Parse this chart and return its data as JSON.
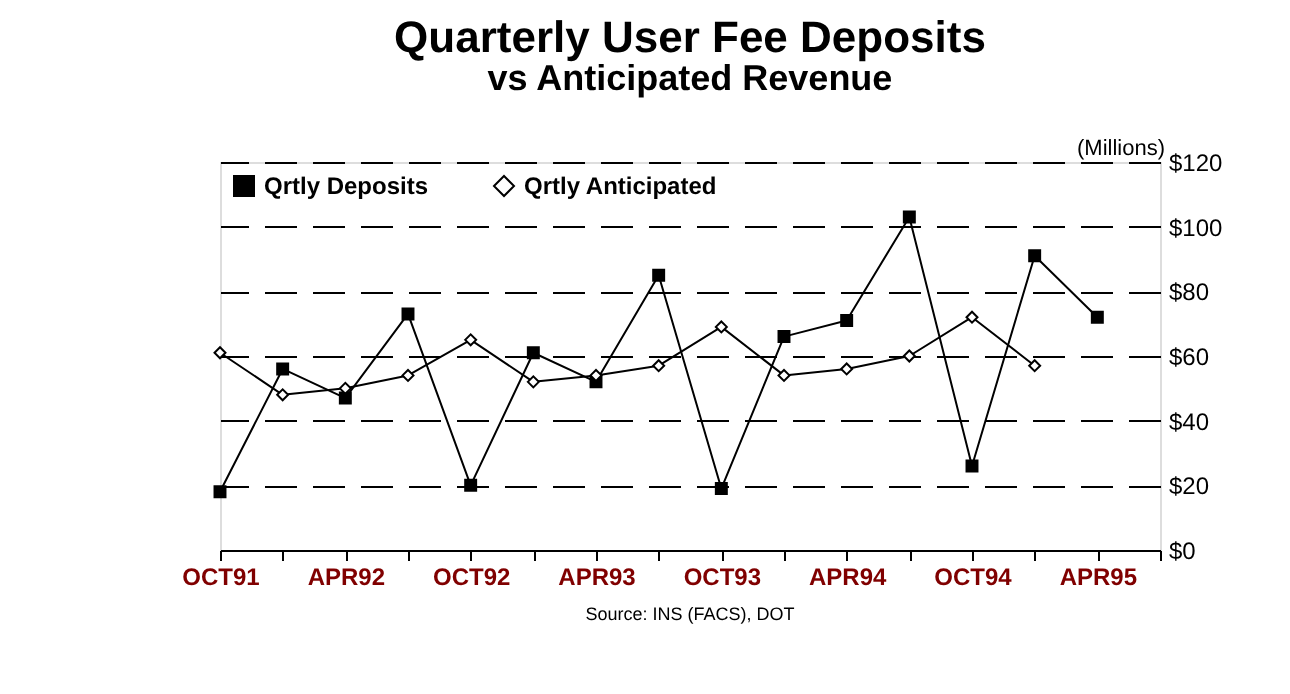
{
  "chart_data": {
    "type": "line",
    "title": "Quarterly User Fee Deposits",
    "subtitle": "vs Anticipated Revenue",
    "ylabel": "(Millions)",
    "categories": [
      "OCT91",
      null,
      "APR92",
      null,
      "OCT92",
      null,
      "APR93",
      null,
      "OCT93",
      null,
      "APR94",
      null,
      "OCT94",
      null,
      "APR95",
      null
    ],
    "series": [
      {
        "name": "Qrtly Deposits",
        "color": "#000000",
        "marker": "square",
        "values": [
          18,
          56,
          47,
          73,
          20,
          61,
          52,
          85,
          19,
          66,
          71,
          103,
          26,
          91,
          72,
          null
        ]
      },
      {
        "name": "Qrtly Anticipated",
        "color": "#000000",
        "marker": "diamond",
        "values": [
          61,
          48,
          50,
          54,
          65,
          52,
          54,
          57,
          69,
          54,
          56,
          60,
          72,
          57,
          null,
          null
        ]
      }
    ],
    "ylim": [
      0,
      120
    ],
    "yticks": [
      {
        "value": 0,
        "label": "$0"
      },
      {
        "value": 20,
        "label": "$20"
      },
      {
        "value": 40,
        "label": "$40"
      },
      {
        "value": 60,
        "label": "$60"
      },
      {
        "value": 80,
        "label": "$80"
      },
      {
        "value": 100,
        "label": "$100"
      },
      {
        "value": 120,
        "label": "$120"
      }
    ],
    "grid": "y",
    "legend": "top left",
    "line_style": "solid",
    "annotations": [
      "Source: INS (FACS), DOT"
    ]
  }
}
